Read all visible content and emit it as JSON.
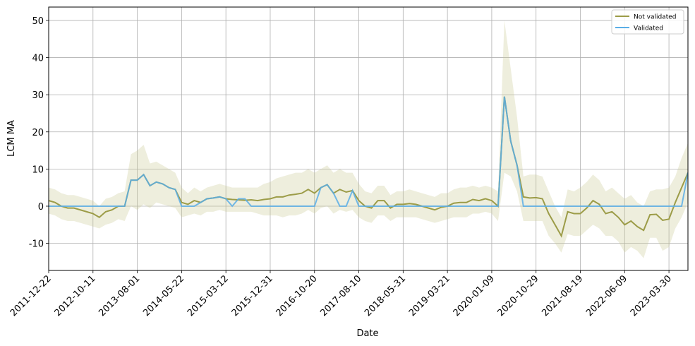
{
  "chart_data": {
    "type": "line",
    "xlabel": "Date",
    "ylabel": "LCM MA",
    "x": [
      "2011-12-22",
      "2012-02-02",
      "2012-03-15",
      "2012-04-26",
      "2012-06-07",
      "2012-07-19",
      "2012-08-30",
      "2012-10-11",
      "2012-11-22",
      "2013-01-03",
      "2013-02-14",
      "2013-03-28",
      "2013-05-09",
      "2013-06-20",
      "2013-08-01",
      "2013-09-12",
      "2013-10-24",
      "2013-12-05",
      "2014-01-16",
      "2014-02-27",
      "2014-04-10",
      "2014-05-22",
      "2014-07-03",
      "2014-08-14",
      "2014-09-25",
      "2014-11-06",
      "2014-12-18",
      "2015-01-29",
      "2015-03-12",
      "2015-04-23",
      "2015-06-04",
      "2015-07-16",
      "2015-08-27",
      "2015-10-08",
      "2015-11-19",
      "2015-12-31",
      "2016-02-11",
      "2016-03-24",
      "2016-05-05",
      "2016-06-16",
      "2016-07-28",
      "2016-09-08",
      "2016-10-20",
      "2016-12-01",
      "2017-01-12",
      "2017-02-23",
      "2017-04-06",
      "2017-05-18",
      "2017-06-29",
      "2017-08-10",
      "2017-09-21",
      "2017-11-02",
      "2017-12-14",
      "2018-01-25",
      "2018-03-08",
      "2018-04-19",
      "2018-05-31",
      "2018-07-12",
      "2018-08-23",
      "2018-10-04",
      "2018-11-15",
      "2018-12-27",
      "2019-02-07",
      "2019-03-21",
      "2019-05-02",
      "2019-06-13",
      "2019-07-25",
      "2019-09-05",
      "2019-10-17",
      "2019-11-28",
      "2020-01-09",
      "2020-02-20",
      "2020-04-02",
      "2020-05-14",
      "2020-06-25",
      "2020-08-06",
      "2020-09-17",
      "2020-10-29",
      "2020-12-10",
      "2021-01-21",
      "2021-03-04",
      "2021-04-15",
      "2021-05-27",
      "2021-07-08",
      "2021-08-19",
      "2021-09-30",
      "2021-11-11",
      "2021-12-23",
      "2022-02-03",
      "2022-03-17",
      "2022-04-28",
      "2022-06-09",
      "2022-07-21",
      "2022-09-01",
      "2022-10-13",
      "2022-11-24",
      "2023-01-05",
      "2023-02-16",
      "2023-03-30",
      "2023-05-11",
      "2023-06-22",
      "2023-08-03"
    ],
    "series": [
      {
        "name": "Not validated",
        "color": "#9c9c48",
        "band_color": "#c8c890",
        "values": [
          1.5,
          1,
          0,
          -0.5,
          -0.5,
          -1,
          -1.5,
          -2,
          -3,
          -1.5,
          -1,
          0,
          0,
          7,
          7,
          8.5,
          5.5,
          6.5,
          6,
          5,
          4.5,
          1,
          0.5,
          1.5,
          1,
          2,
          2.2,
          2.5,
          2,
          1.8,
          1.7,
          1.6,
          1.7,
          1.5,
          1.8,
          2,
          2.5,
          2.5,
          3,
          3.2,
          3.5,
          4.5,
          3.5,
          5,
          5.8,
          3.5,
          4.5,
          3.8,
          4.2,
          1.5,
          0,
          -0.5,
          1.5,
          1.5,
          -0.5,
          0.5,
          0.5,
          0.7,
          0.5,
          0,
          -0.5,
          -1,
          -0.3,
          0,
          0.8,
          1,
          1,
          1.8,
          1.5,
          2,
          1.5,
          0,
          29.5,
          17.5,
          11,
          2.5,
          2.2,
          2.3,
          2,
          -2,
          -5,
          -8,
          -1.5,
          -2,
          -2,
          -0.5,
          1.5,
          0.5,
          -2,
          -1.5,
          -3,
          -5,
          -4,
          -5.5,
          -6.5,
          -2.3,
          -2.2,
          -3.8,
          -3.5,
          1,
          5,
          9
        ],
        "lower": [
          -2,
          -2.5,
          -3.5,
          -4,
          -4,
          -4.5,
          -5,
          -5.5,
          -6,
          -5,
          -4.5,
          -3.5,
          -4,
          0,
          -1,
          0.5,
          -0.5,
          1,
          0.5,
          0,
          -0.5,
          -3,
          -2.5,
          -2,
          -2.5,
          -1.5,
          -1.5,
          -1,
          -1.5,
          -1.5,
          -1.5,
          -1.5,
          -1.5,
          -2,
          -2.5,
          -2.5,
          -2.5,
          -3,
          -2.5,
          -2.5,
          -2,
          -1,
          -2,
          -0.5,
          0,
          -2,
          -1,
          -1.5,
          -1,
          -3,
          -4,
          -4.5,
          -2.5,
          -2.5,
          -4,
          -3,
          -3,
          -3,
          -3,
          -3.5,
          -4,
          -4.5,
          -4,
          -3.5,
          -3,
          -3,
          -3,
          -2,
          -2,
          -1.5,
          -2,
          -4,
          9,
          8,
          4,
          -4,
          -4,
          -4,
          -4,
          -8,
          -10,
          -12.5,
          -7.5,
          -8,
          -8,
          -6.5,
          -5,
          -6,
          -8,
          -8,
          -9.5,
          -12.5,
          -11,
          -12,
          -14,
          -8.5,
          -8.5,
          -12,
          -11,
          -6,
          -3,
          1
        ],
        "upper": [
          5,
          4.5,
          3.5,
          3,
          3,
          2.5,
          2,
          1.5,
          0,
          2,
          2.5,
          3.5,
          4,
          14,
          15,
          16.5,
          11.5,
          12,
          11,
          10,
          9,
          5,
          3.5,
          5,
          4,
          5,
          5.5,
          6,
          5.5,
          5,
          5,
          5,
          5,
          5,
          6,
          6.5,
          7.5,
          8,
          8.5,
          9,
          9,
          10,
          9,
          10,
          11,
          9,
          10,
          9,
          9,
          6,
          4,
          3.5,
          5.5,
          5.5,
          3,
          4,
          4,
          4.5,
          4,
          3.5,
          3,
          2.5,
          3.5,
          3.5,
          4.5,
          5,
          5,
          5.5,
          5,
          5.5,
          5,
          4,
          50,
          37,
          24,
          8,
          8.5,
          8.5,
          8,
          4,
          0,
          -3,
          4.5,
          4,
          5,
          6.5,
          8.5,
          7,
          4,
          5,
          3.5,
          2,
          3,
          1,
          0,
          4,
          4.5,
          4.5,
          5,
          8,
          13,
          17
        ]
      },
      {
        "name": "Validated",
        "color": "#5aaee6",
        "values": [
          0,
          0,
          0,
          0,
          0,
          0,
          0,
          0,
          0,
          0,
          0,
          0,
          0,
          7,
          7,
          8.5,
          5.5,
          6.5,
          6,
          5,
          4.5,
          0,
          0,
          0,
          1,
          2,
          2.2,
          2.5,
          2,
          0,
          2,
          2,
          0,
          0,
          0,
          0,
          0,
          0,
          0,
          0,
          0,
          0,
          0,
          5,
          5.8,
          3.5,
          0,
          0,
          4.2,
          0,
          0,
          0,
          0,
          0,
          0,
          0,
          0,
          0,
          0,
          0,
          0,
          0,
          0,
          0,
          0,
          0,
          0,
          0,
          0,
          0,
          0,
          0,
          29.5,
          17.5,
          11,
          0,
          0,
          0,
          0,
          0,
          0,
          0,
          0,
          0,
          0,
          0,
          0,
          0,
          0,
          0,
          0,
          0,
          0,
          0,
          0,
          0,
          0,
          0,
          0,
          0,
          0,
          9
        ]
      }
    ],
    "xlim": [
      "2011-12-22",
      "2023-08-03"
    ],
    "xticks": [
      "2011-12-22",
      "2012-10-11",
      "2013-08-01",
      "2014-05-22",
      "2015-03-12",
      "2015-12-31",
      "2016-10-20",
      "2017-08-10",
      "2018-05-31",
      "2019-03-21",
      "2020-01-09",
      "2020-10-29",
      "2021-08-19",
      "2022-06-09",
      "2023-03-30"
    ],
    "ylim": [
      -17.3,
      53.6
    ],
    "yticks": [
      -10,
      0,
      10,
      20,
      30,
      40,
      50
    ],
    "grid": true,
    "legend": "upper right"
  }
}
